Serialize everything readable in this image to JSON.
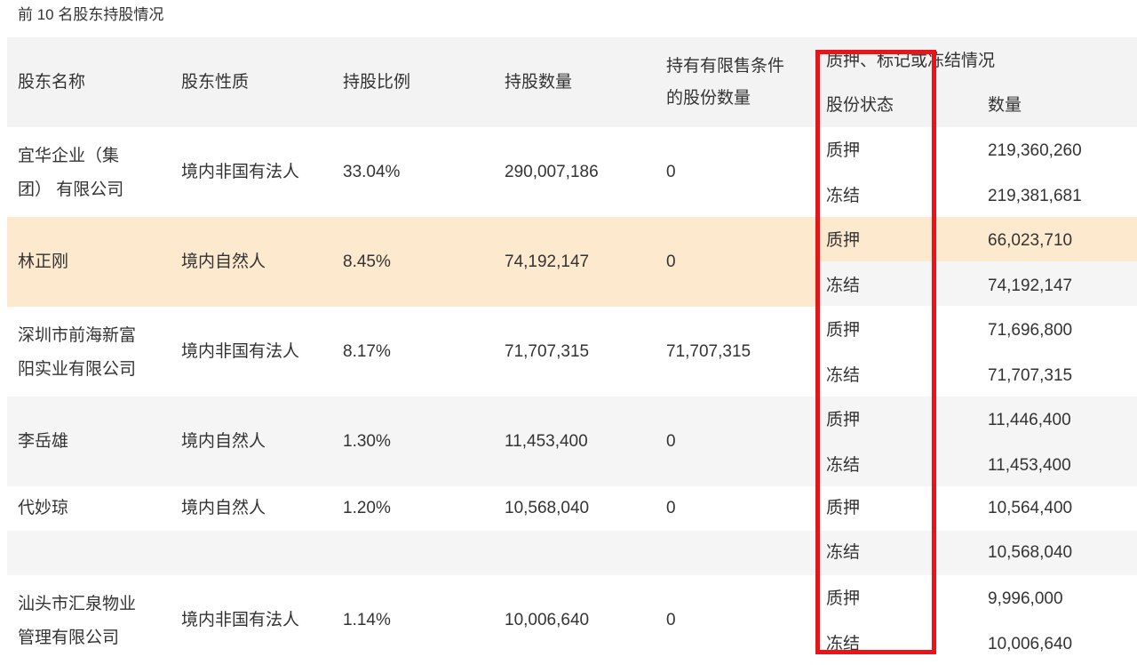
{
  "caption": "前 10 名股东持股情况",
  "headers": {
    "name": "股东名称",
    "nature": "股东性质",
    "ratio": "持股比例",
    "shares": "持股数量",
    "restricted_line1": "持有有限售条件",
    "restricted_line2": "的股份数量",
    "pledge_group": "质押、标记或冻结情况",
    "status": "股份状态",
    "amount": "数量"
  },
  "rows": [
    {
      "name_line1": "宜华企业（集",
      "name_line2": "团） 有限公司",
      "nature": "境内非国有法人",
      "ratio": "33.04%",
      "shares": "290,007,186",
      "restricted": "0",
      "statuses": [
        {
          "status": "质押",
          "amount": "219,360,260"
        },
        {
          "status": "冻结",
          "amount": "219,381,681"
        }
      ]
    },
    {
      "name_line1": "林正刚",
      "nature": "境内自然人",
      "ratio": "8.45%",
      "shares": "74,192,147",
      "restricted": "0",
      "statuses": [
        {
          "status": "质押",
          "amount": "66,023,710"
        },
        {
          "status": "冻结",
          "amount": "74,192,147"
        }
      ]
    },
    {
      "name_line1": "深圳市前海新富",
      "name_line2": "阳实业有限公司",
      "nature": "境内非国有法人",
      "ratio": "8.17%",
      "shares": "71,707,315",
      "restricted": "71,707,315",
      "statuses": [
        {
          "status": "质押",
          "amount": "71,696,800"
        },
        {
          "status": "冻结",
          "amount": "71,707,315"
        }
      ]
    },
    {
      "name_line1": "李岳雄",
      "nature": "境内自然人",
      "ratio": "1.30%",
      "shares": "11,453,400",
      "restricted": "0",
      "statuses": [
        {
          "status": "质押",
          "amount": "11,446,400"
        },
        {
          "status": "冻结",
          "amount": "11,453,400"
        }
      ]
    },
    {
      "name_line1": "代妙琼",
      "nature": "境内自然人",
      "ratio": "1.20%",
      "shares": "10,568,040",
      "restricted": "0",
      "statuses": [
        {
          "status": "质押",
          "amount": "10,564,400"
        },
        {
          "status": "冻结",
          "amount": "10,568,040"
        }
      ]
    },
    {
      "name_line1": "汕头市汇泉物业",
      "name_line2": "管理有限公司",
      "nature": "境内非国有法人",
      "ratio": "1.14%",
      "shares": "10,006,640",
      "restricted": "0",
      "statuses": [
        {
          "status": "质押",
          "amount": "9,996,000"
        },
        {
          "status": "冻结",
          "amount": "10,006,640"
        }
      ]
    }
  ],
  "annotation_color": "#e8141a",
  "highlight_color": "#fde9cd"
}
